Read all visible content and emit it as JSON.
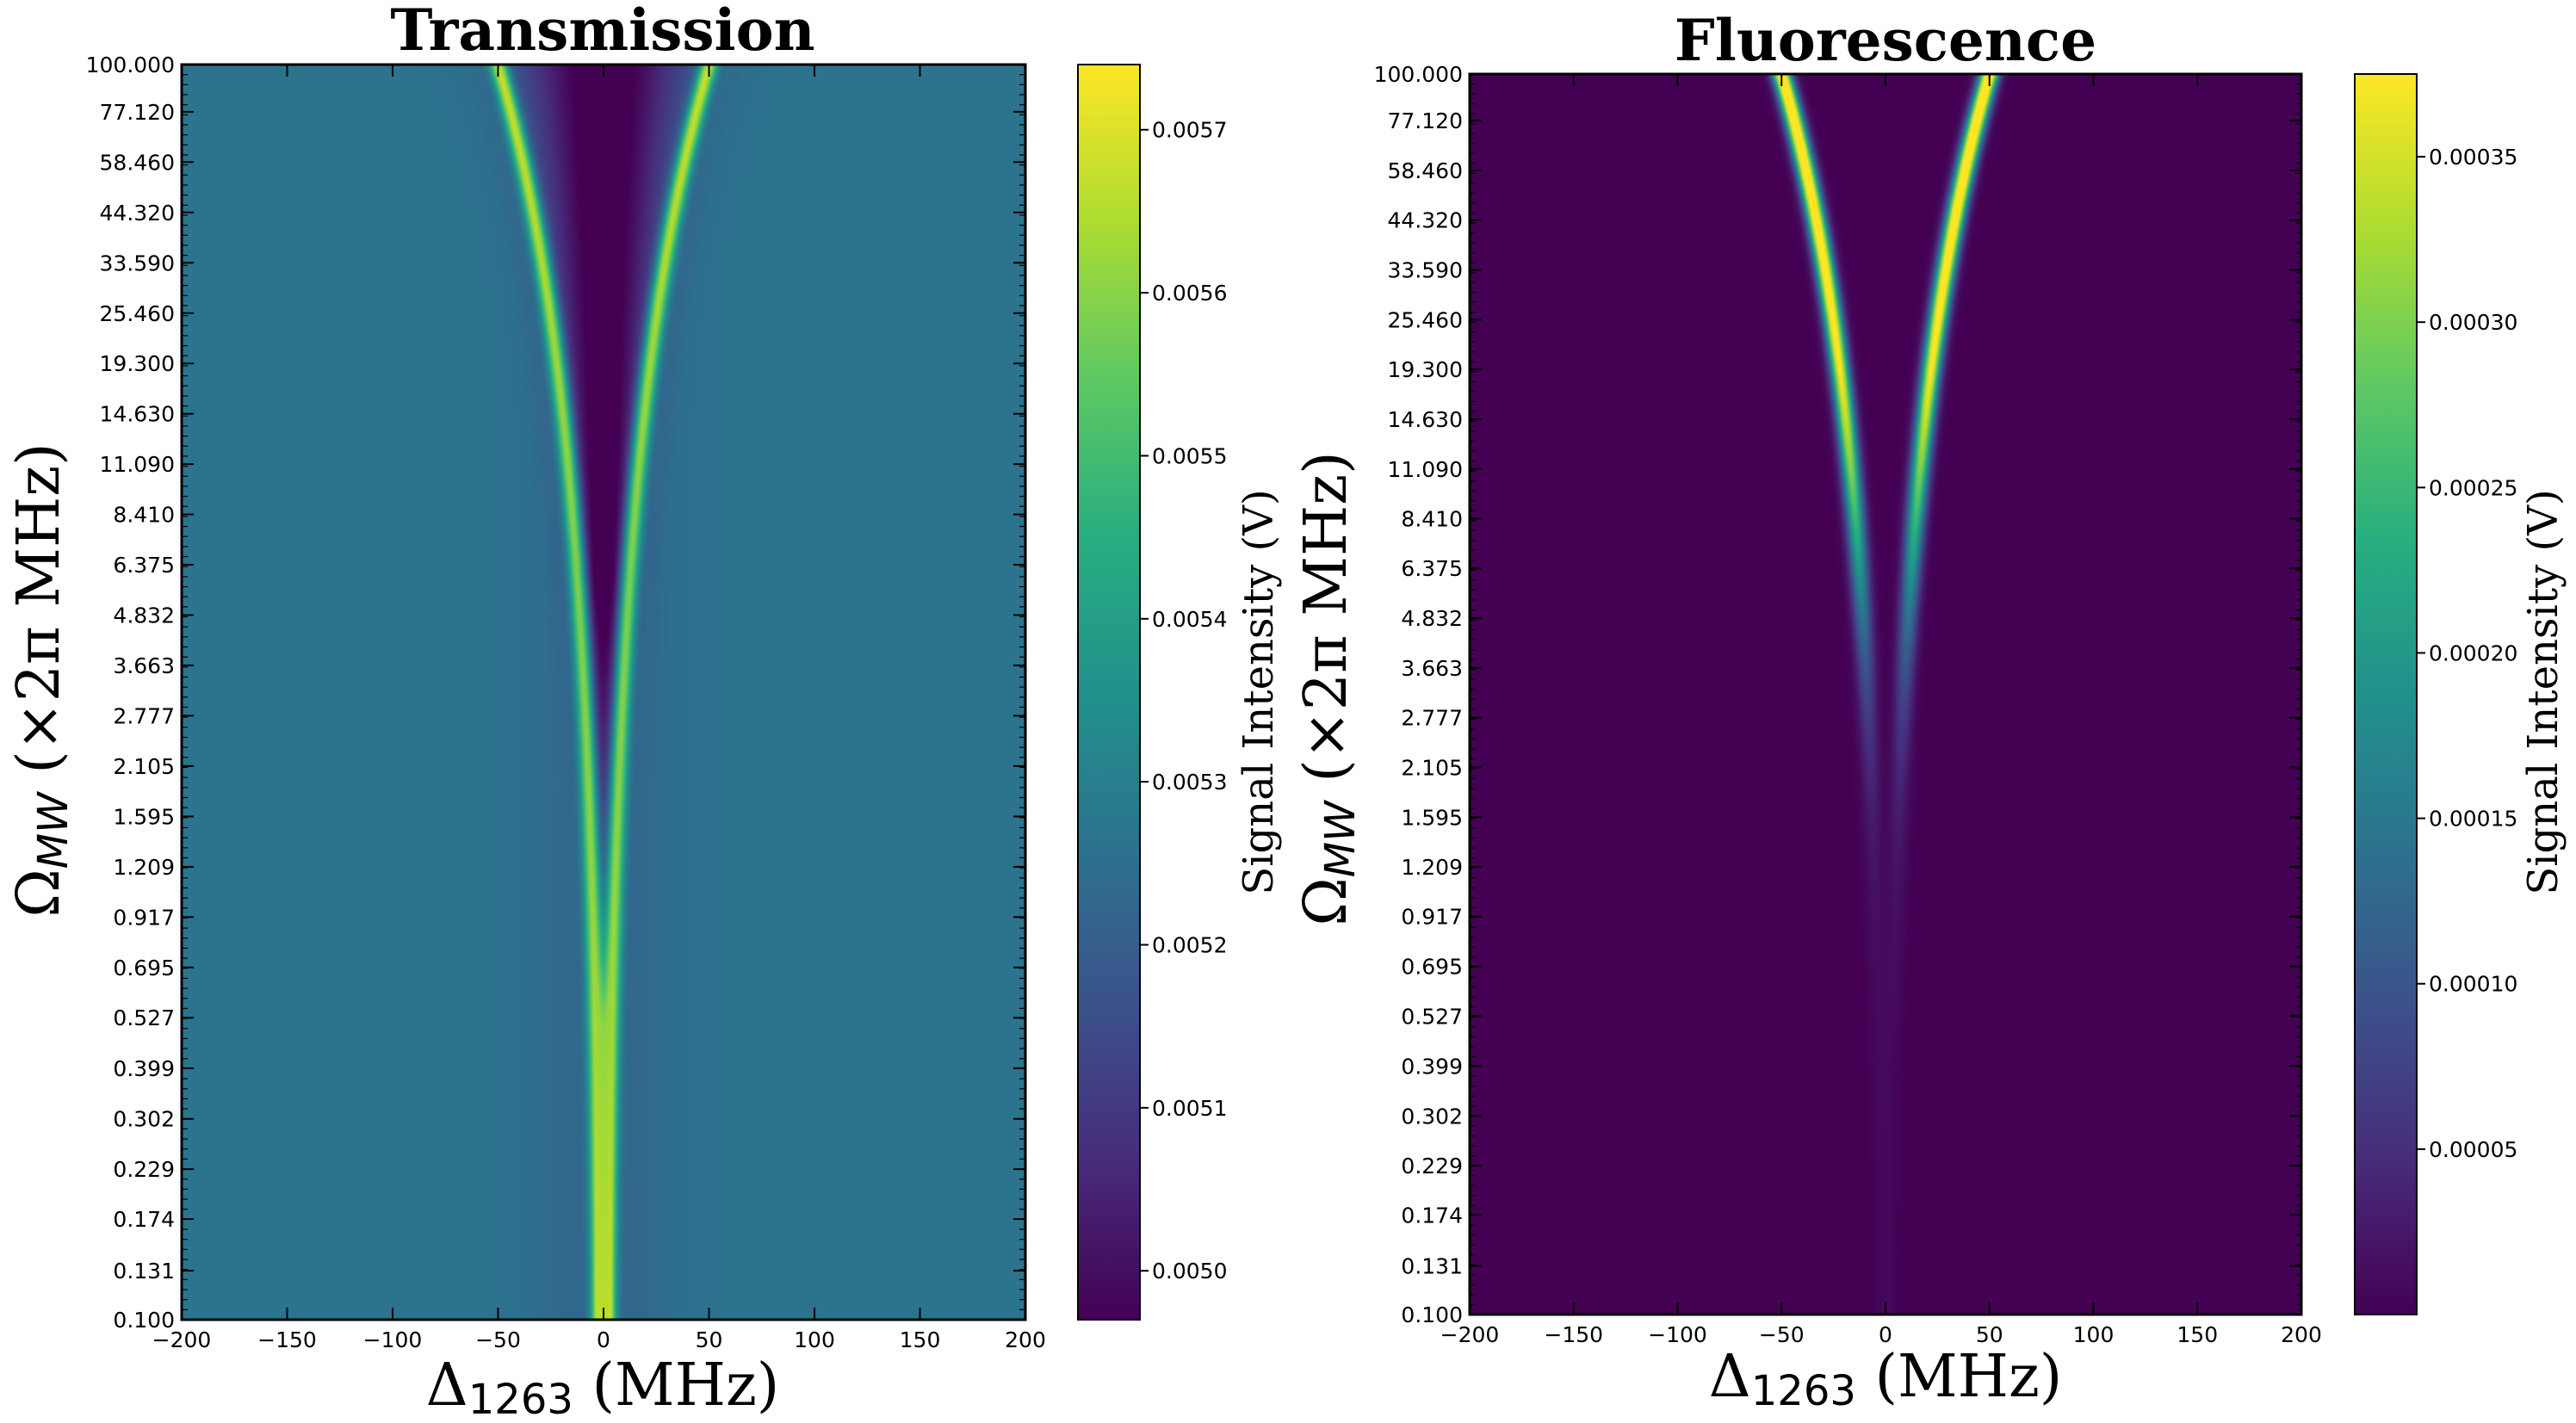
{
  "chart_data": [
    {
      "type": "heatmap",
      "title": "Transmission",
      "xlabel_symbol": "Δ",
      "xlabel_sub": "1263",
      "xlabel_rest": " (MHz)",
      "ylabel_symbol": "Ω",
      "ylabel_sub": "MW",
      "ylabel_rest": " (×2π MHz)",
      "xlim": [
        -200,
        200
      ],
      "xticks": [
        -200,
        -150,
        -100,
        -50,
        0,
        50,
        100,
        150,
        200
      ],
      "xtick_labels": [
        "−200",
        "−150",
        "−100",
        "−50",
        "0",
        "50",
        "100",
        "150",
        "200"
      ],
      "ytick_labels": [
        "100.000",
        "77.120",
        "58.460",
        "44.320",
        "33.590",
        "25.460",
        "19.300",
        "14.630",
        "11.090",
        "8.410",
        "6.375",
        "4.832",
        "3.663",
        "2.777",
        "2.105",
        "1.595",
        "1.209",
        "0.917",
        "0.695",
        "0.527",
        "0.399",
        "0.302",
        "0.229",
        "0.174",
        "0.131",
        "0.100"
      ],
      "yscale": "log",
      "ylim": [
        0.1,
        100.0
      ],
      "splitting_at_top_MHz": 50,
      "mode": "transmission",
      "colorbar": {
        "label": "Signal Intensity (V)",
        "vmin": 0.00497,
        "vmax": 0.00574,
        "ticks": [
          0.005,
          0.0051,
          0.0052,
          0.0053,
          0.0054,
          0.0055,
          0.0056,
          0.0057
        ],
        "tick_labels": [
          "0.0050",
          "0.0051",
          "0.0052",
          "0.0053",
          "0.0054",
          "0.0055",
          "0.0056",
          "0.0057"
        ]
      }
    },
    {
      "type": "heatmap",
      "title": "Fluorescence",
      "xlabel_symbol": "Δ",
      "xlabel_sub": "1263",
      "xlabel_rest": " (MHz)",
      "ylabel_symbol": "Ω",
      "ylabel_sub": "MW",
      "ylabel_rest": " (×2π MHz)",
      "xlim": [
        -200,
        200
      ],
      "xticks": [
        -200,
        -150,
        -100,
        -50,
        0,
        50,
        100,
        150,
        200
      ],
      "xtick_labels": [
        "−200",
        "−150",
        "−100",
        "−50",
        "0",
        "50",
        "100",
        "150",
        "200"
      ],
      "ytick_labels": [
        "100.000",
        "77.120",
        "58.460",
        "44.320",
        "33.590",
        "25.460",
        "19.300",
        "14.630",
        "11.090",
        "8.410",
        "6.375",
        "4.832",
        "3.663",
        "2.777",
        "2.105",
        "1.595",
        "1.209",
        "0.917",
        "0.695",
        "0.527",
        "0.399",
        "0.302",
        "0.229",
        "0.174",
        "0.131",
        "0.100"
      ],
      "yscale": "log",
      "ylim": [
        0.1,
        100.0
      ],
      "splitting_at_top_MHz": 50,
      "mode": "fluorescence",
      "colorbar": {
        "label": "Signal Intensity (V)",
        "vmin": 0.0,
        "vmax": 0.000375,
        "ticks": [
          5e-05,
          0.0001,
          0.00015,
          0.0002,
          0.00025,
          0.0003,
          0.00035
        ],
        "tick_labels": [
          "0.00005",
          "0.00010",
          "0.00015",
          "0.00020",
          "0.00025",
          "0.00030",
          "0.00035"
        ]
      }
    }
  ]
}
